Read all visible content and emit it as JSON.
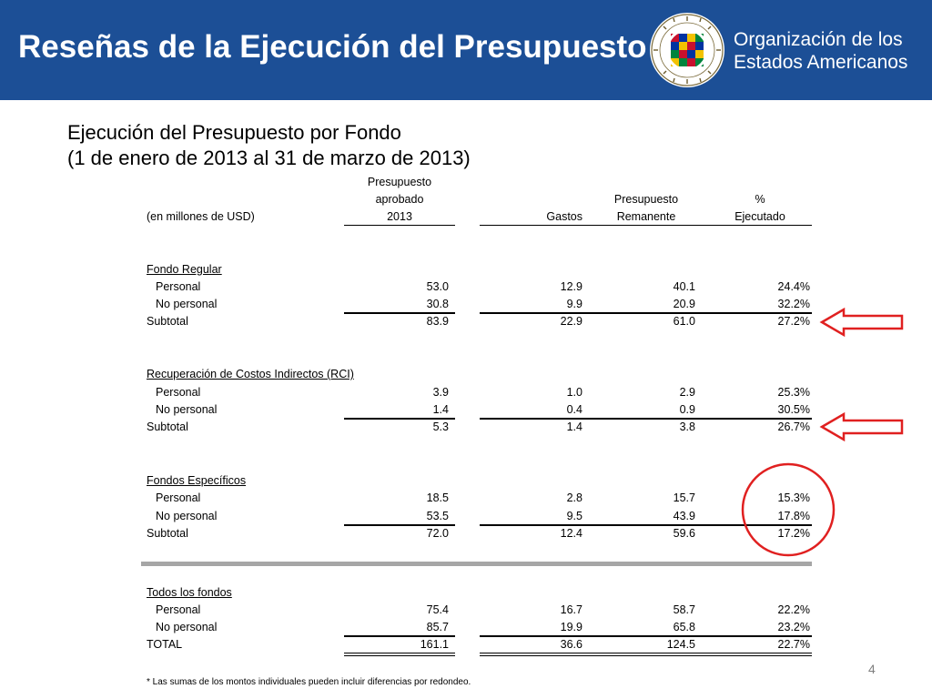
{
  "header": {
    "title": "Reseñas de la Ejecución del Presupuesto",
    "org_line1": "Organización de los",
    "org_line2": "Estados Americanos",
    "brand_color": "#1c4f96"
  },
  "subtitle": {
    "line1": "Ejecución del Presupuesto por Fondo",
    "line2": "(1 de enero de 2013 al 31 de marzo de 2013)"
  },
  "table": {
    "unit_label": "(en millones de USD)",
    "col_budget": [
      "Presupuesto",
      "aprobado",
      "2013"
    ],
    "col_spent": "Gastos",
    "col_remaining": [
      "Presupuesto",
      "Remanente"
    ],
    "col_pct": [
      "%",
      "Ejecutado"
    ],
    "sections": [
      {
        "title": "Fondo Regular",
        "rows": [
          {
            "label": "Personal",
            "budget": "53.0",
            "spent": "12.9",
            "remaining": "40.1",
            "pct": "24.4%"
          },
          {
            "label": "No personal",
            "budget": "30.8",
            "spent": "9.9",
            "remaining": "20.9",
            "pct": "32.2%"
          },
          {
            "label": "Subtotal",
            "budget": "83.9",
            "spent": "22.9",
            "remaining": "61.0",
            "pct": "27.2%"
          }
        ]
      },
      {
        "title": "Recuperación de Costos Indirectos (RCI)",
        "rows": [
          {
            "label": "Personal",
            "budget": "3.9",
            "spent": "1.0",
            "remaining": "2.9",
            "pct": "25.3%"
          },
          {
            "label": "No personal",
            "budget": "1.4",
            "spent": "0.4",
            "remaining": "0.9",
            "pct": "30.5%"
          },
          {
            "label": "Subtotal",
            "budget": "5.3",
            "spent": "1.4",
            "remaining": "3.8",
            "pct": "26.7%"
          }
        ]
      },
      {
        "title": "Fondos Específicos",
        "rows": [
          {
            "label": "Personal",
            "budget": "18.5",
            "spent": "2.8",
            "remaining": "15.7",
            "pct": "15.3%"
          },
          {
            "label": "No personal",
            "budget": "53.5",
            "spent": "9.5",
            "remaining": "43.9",
            "pct": "17.8%"
          },
          {
            "label": "Subtotal",
            "budget": "72.0",
            "spent": "12.4",
            "remaining": "59.6",
            "pct": "17.2%"
          }
        ]
      },
      {
        "title": "Todos los fondos",
        "rows": [
          {
            "label": "Personal",
            "budget": "75.4",
            "spent": "16.7",
            "remaining": "58.7",
            "pct": "22.2%"
          },
          {
            "label": "No personal",
            "budget": "85.7",
            "spent": "19.9",
            "remaining": "65.8",
            "pct": "23.2%"
          },
          {
            "label": "TOTAL",
            "budget": "161.1",
            "spent": "36.6",
            "remaining": "124.5",
            "pct": "22.7%"
          }
        ]
      }
    ]
  },
  "footnote": "* Las sumas de los montos individuales pueden incluir diferencias por redondeo.",
  "page_number": "4",
  "annotations": {
    "arrow_color": "#e02020",
    "circle_color": "#e02020",
    "icons": [
      "left-arrow-icon",
      "left-arrow-icon",
      "circle-highlight"
    ]
  }
}
